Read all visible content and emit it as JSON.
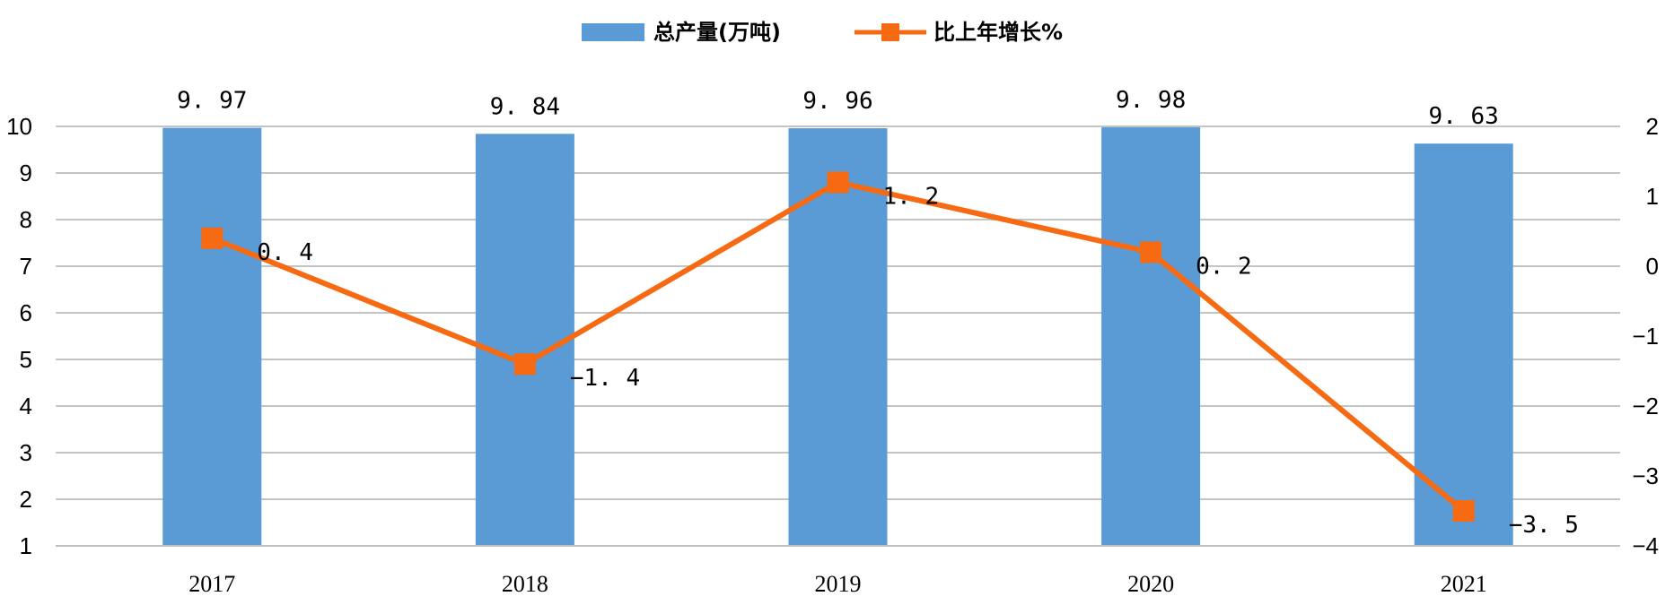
{
  "chart_data": {
    "type": "bar",
    "categories": [
      "2017",
      "2018",
      "2019",
      "2020",
      "2021"
    ],
    "series": [
      {
        "name": "总产量(万吨)",
        "type": "bar",
        "axis": "left",
        "values": [
          9.97,
          9.84,
          9.96,
          9.98,
          9.63
        ],
        "labels": [
          "9.97",
          "9.84",
          "9.96",
          "9.98",
          "9.63"
        ],
        "color": "#5b9bd5"
      },
      {
        "name": "比上年增长%",
        "type": "line",
        "axis": "right",
        "values": [
          0.4,
          -1.4,
          1.2,
          0.2,
          -3.5
        ],
        "labels": [
          "0.4",
          "-1.4",
          "1.2",
          "0.2",
          "-3.5"
        ],
        "color": "#f56a12"
      }
    ],
    "y_left": {
      "min": 1,
      "max": 10,
      "ticks": [
        "1",
        "2",
        "3",
        "4",
        "5",
        "6",
        "7",
        "8",
        "9",
        "10"
      ]
    },
    "y_right": {
      "min": -4,
      "max": 2,
      "ticks": [
        "-4",
        "-3",
        "-2",
        "-1",
        "0",
        "1",
        "2"
      ]
    },
    "grid": true,
    "legend": "top-center"
  }
}
